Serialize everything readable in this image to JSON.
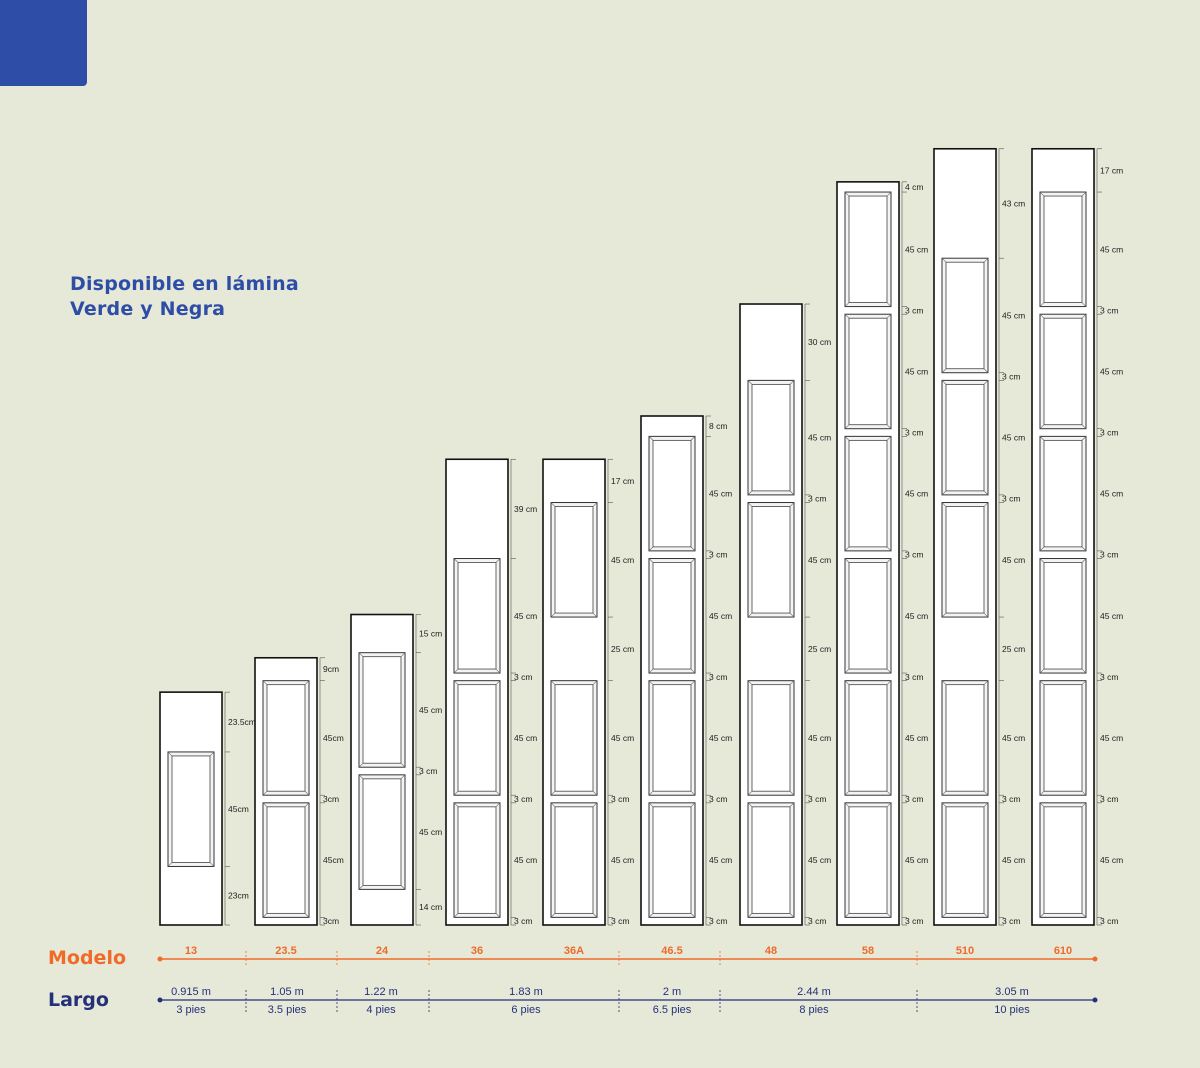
{
  "colors": {
    "background": "#e6e9d8",
    "corner_block": "#2e4da6",
    "heading": "#2e4da6",
    "modelo": "#f06a2a",
    "largo": "#25307a",
    "panel_outline": "#111111",
    "door_fill": "#ffffff"
  },
  "heading": {
    "line1": "Disponible en lámina",
    "line2": "Verde y Negra"
  },
  "row_labels": {
    "modelo": "Modelo",
    "largo": "Largo"
  },
  "doors": [
    {
      "modelo": "13",
      "dims": [
        "23.5cm",
        "45cm",
        "23cm"
      ]
    },
    {
      "modelo": "23.5",
      "dims": [
        "9cm",
        "45cm",
        "3cm",
        "45cm",
        "3cm"
      ]
    },
    {
      "modelo": "24",
      "dims": [
        "15 cm",
        "45 cm",
        "3 cm",
        "45 cm",
        "14 cm"
      ]
    },
    {
      "modelo": "36",
      "dims": [
        "39 cm",
        "45 cm",
        "3 cm",
        "45 cm",
        "3 cm",
        "45 cm",
        "3 cm"
      ]
    },
    {
      "modelo": "36A",
      "dims": [
        "17 cm",
        "45 cm",
        "25 cm",
        "45 cm",
        "3 cm",
        "45 cm",
        "3 cm"
      ]
    },
    {
      "modelo": "46.5",
      "dims": [
        "8 cm",
        "45 cm",
        "3 cm",
        "45 cm",
        "3 cm",
        "45 cm",
        "3 cm",
        "45 cm",
        "3 cm"
      ]
    },
    {
      "modelo": "48",
      "dims": [
        "30 cm",
        "45 cm",
        "3 cm",
        "45 cm",
        "25 cm",
        "45 cm",
        "3 cm",
        "45 cm",
        "3 cm"
      ]
    },
    {
      "modelo": "58",
      "dims": [
        "4 cm",
        "45 cm",
        "3 cm",
        "45 cm",
        "3 cm",
        "45 cm",
        "3 cm",
        "45 cm",
        "3 cm",
        "45 cm",
        "3 cm",
        "45 cm",
        "3 cm"
      ]
    },
    {
      "modelo": "510",
      "dims": [
        "43 cm",
        "45 cm",
        "3 cm",
        "45 cm",
        "3 cm",
        "45 cm",
        "25 cm",
        "45 cm",
        "3 cm",
        "45 cm",
        "3 cm"
      ]
    },
    {
      "modelo": "610",
      "dims": [
        "17 cm",
        "45 cm",
        "3 cm",
        "45 cm",
        "3 cm",
        "45 cm",
        "3 cm",
        "45 cm",
        "3 cm",
        "45 cm",
        "3 cm",
        "45 cm",
        "3 cm"
      ]
    }
  ],
  "largo": [
    {
      "m": "0.915 m",
      "pies": "3 pies"
    },
    {
      "m": "1.05 m",
      "pies": "3.5 pies"
    },
    {
      "m": "1.22 m",
      "pies": "4 pies"
    },
    {
      "m": "1.83 m",
      "pies": "6 pies"
    },
    {
      "m": "2 m",
      "pies": "6.5 pies"
    },
    {
      "m": "2.44 m",
      "pies": "8 pies"
    },
    {
      "m": "3.05 m",
      "pies": "10 pies"
    }
  ]
}
